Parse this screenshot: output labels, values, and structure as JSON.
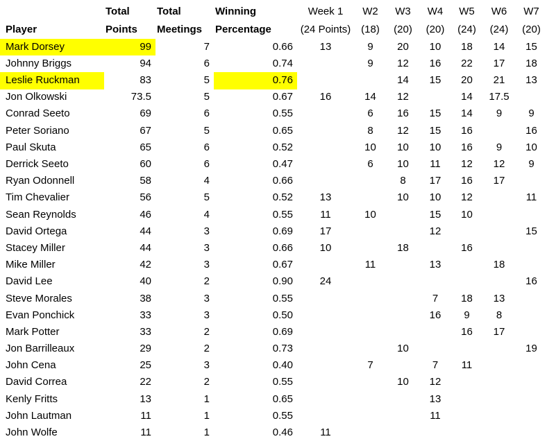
{
  "table": {
    "highlight_color": "#ffff00",
    "headers": {
      "player": "Player",
      "total_points": {
        "line1": "Total",
        "line2": "Points"
      },
      "total_meetings": {
        "line1": "Total",
        "line2": "Meetings"
      },
      "winning_percentage": {
        "line1": "Winning",
        "line2": "Percentage"
      },
      "weeks": [
        {
          "line1": "Week 1",
          "line2": "(24 Points)"
        },
        {
          "line1": "W2",
          "line2": "(18)"
        },
        {
          "line1": "W3",
          "line2": "(20)"
        },
        {
          "line1": "W4",
          "line2": "(20)"
        },
        {
          "line1": "W5",
          "line2": "(24)"
        },
        {
          "line1": "W6",
          "line2": "(24)"
        },
        {
          "line1": "W7",
          "line2": "(20)"
        }
      ]
    },
    "rows": [
      {
        "player": "Mark Dorsey",
        "total_points": "99",
        "total_meetings": "7",
        "winning_percentage": "0.66",
        "weeks": [
          "13",
          "9",
          "20",
          "10",
          "18",
          "14",
          "15"
        ],
        "highlight": [
          "player",
          "total_points"
        ]
      },
      {
        "player": "Johnny Briggs",
        "total_points": "94",
        "total_meetings": "6",
        "winning_percentage": "0.74",
        "weeks": [
          "",
          "9",
          "12",
          "16",
          "22",
          "17",
          "18"
        ],
        "highlight": []
      },
      {
        "player": "Leslie Ruckman",
        "total_points": "83",
        "total_meetings": "5",
        "winning_percentage": "0.76",
        "weeks": [
          "",
          "",
          "14",
          "15",
          "20",
          "21",
          "13"
        ],
        "highlight": [
          "player",
          "winning_percentage"
        ]
      },
      {
        "player": "Jon Olkowski",
        "total_points": "73.5",
        "total_meetings": "5",
        "winning_percentage": "0.67",
        "weeks": [
          "16",
          "14",
          "12",
          "",
          "14",
          "17.5",
          ""
        ],
        "highlight": []
      },
      {
        "player": "Conrad Seeto",
        "total_points": "69",
        "total_meetings": "6",
        "winning_percentage": "0.55",
        "weeks": [
          "",
          "6",
          "16",
          "15",
          "14",
          "9",
          "9"
        ],
        "highlight": []
      },
      {
        "player": "Peter Soriano",
        "total_points": "67",
        "total_meetings": "5",
        "winning_percentage": "0.65",
        "weeks": [
          "",
          "8",
          "12",
          "15",
          "16",
          "",
          "16"
        ],
        "highlight": []
      },
      {
        "player": "Paul Skuta",
        "total_points": "65",
        "total_meetings": "6",
        "winning_percentage": "0.52",
        "weeks": [
          "",
          "10",
          "10",
          "10",
          "16",
          "9",
          "10"
        ],
        "highlight": []
      },
      {
        "player": "Derrick Seeto",
        "total_points": "60",
        "total_meetings": "6",
        "winning_percentage": "0.47",
        "weeks": [
          "",
          "6",
          "10",
          "11",
          "12",
          "12",
          "9"
        ],
        "highlight": []
      },
      {
        "player": "Ryan Odonnell",
        "total_points": "58",
        "total_meetings": "4",
        "winning_percentage": "0.66",
        "weeks": [
          "",
          "",
          "8",
          "17",
          "16",
          "17",
          ""
        ],
        "highlight": []
      },
      {
        "player": "Tim Chevalier",
        "total_points": "56",
        "total_meetings": "5",
        "winning_percentage": "0.52",
        "weeks": [
          "13",
          "",
          "10",
          "10",
          "12",
          "",
          "11"
        ],
        "highlight": []
      },
      {
        "player": "Sean Reynolds",
        "total_points": "46",
        "total_meetings": "4",
        "winning_percentage": "0.55",
        "weeks": [
          "11",
          "10",
          "",
          "15",
          "10",
          "",
          ""
        ],
        "highlight": []
      },
      {
        "player": "David Ortega",
        "total_points": "44",
        "total_meetings": "3",
        "winning_percentage": "0.69",
        "weeks": [
          "17",
          "",
          "",
          "12",
          "",
          "",
          "15"
        ],
        "highlight": []
      },
      {
        "player": "Stacey Miller",
        "total_points": "44",
        "total_meetings": "3",
        "winning_percentage": "0.66",
        "weeks": [
          "10",
          "",
          "18",
          "",
          "16",
          "",
          ""
        ],
        "highlight": []
      },
      {
        "player": "Mike Miller",
        "total_points": "42",
        "total_meetings": "3",
        "winning_percentage": "0.67",
        "weeks": [
          "",
          "11",
          "",
          "13",
          "",
          "18",
          ""
        ],
        "highlight": []
      },
      {
        "player": "David Lee",
        "total_points": "40",
        "total_meetings": "2",
        "winning_percentage": "0.90",
        "weeks": [
          "24",
          "",
          "",
          "",
          "",
          "",
          "16"
        ],
        "highlight": []
      },
      {
        "player": "Steve Morales",
        "total_points": "38",
        "total_meetings": "3",
        "winning_percentage": "0.55",
        "weeks": [
          "",
          "",
          "",
          "7",
          "18",
          "13",
          ""
        ],
        "highlight": []
      },
      {
        "player": "Evan Ponchick",
        "total_points": "33",
        "total_meetings": "3",
        "winning_percentage": "0.50",
        "weeks": [
          "",
          "",
          "",
          "16",
          "9",
          "8",
          ""
        ],
        "highlight": []
      },
      {
        "player": "Mark Potter",
        "total_points": "33",
        "total_meetings": "2",
        "winning_percentage": "0.69",
        "weeks": [
          "",
          "",
          "",
          "",
          "16",
          "17",
          ""
        ],
        "highlight": []
      },
      {
        "player": "Jon Barrilleaux",
        "total_points": "29",
        "total_meetings": "2",
        "winning_percentage": "0.73",
        "weeks": [
          "",
          "",
          "10",
          "",
          "",
          "",
          "19"
        ],
        "highlight": []
      },
      {
        "player": "John Cena",
        "total_points": "25",
        "total_meetings": "3",
        "winning_percentage": "0.40",
        "weeks": [
          "",
          "7",
          "",
          "7",
          "11",
          "",
          ""
        ],
        "highlight": []
      },
      {
        "player": "David Correa",
        "total_points": "22",
        "total_meetings": "2",
        "winning_percentage": "0.55",
        "weeks": [
          "",
          "",
          "10",
          "12",
          "",
          "",
          ""
        ],
        "highlight": []
      },
      {
        "player": "Kenly Fritts",
        "total_points": "13",
        "total_meetings": "1",
        "winning_percentage": "0.65",
        "weeks": [
          "",
          "",
          "",
          "13",
          "",
          "",
          ""
        ],
        "highlight": []
      },
      {
        "player": "John Lautman",
        "total_points": "11",
        "total_meetings": "1",
        "winning_percentage": "0.55",
        "weeks": [
          "",
          "",
          "",
          "11",
          "",
          "",
          ""
        ],
        "highlight": []
      },
      {
        "player": "John Wolfe",
        "total_points": "11",
        "total_meetings": "1",
        "winning_percentage": "0.46",
        "weeks": [
          "11",
          "",
          "",
          "",
          "",
          "",
          ""
        ],
        "highlight": []
      }
    ]
  }
}
